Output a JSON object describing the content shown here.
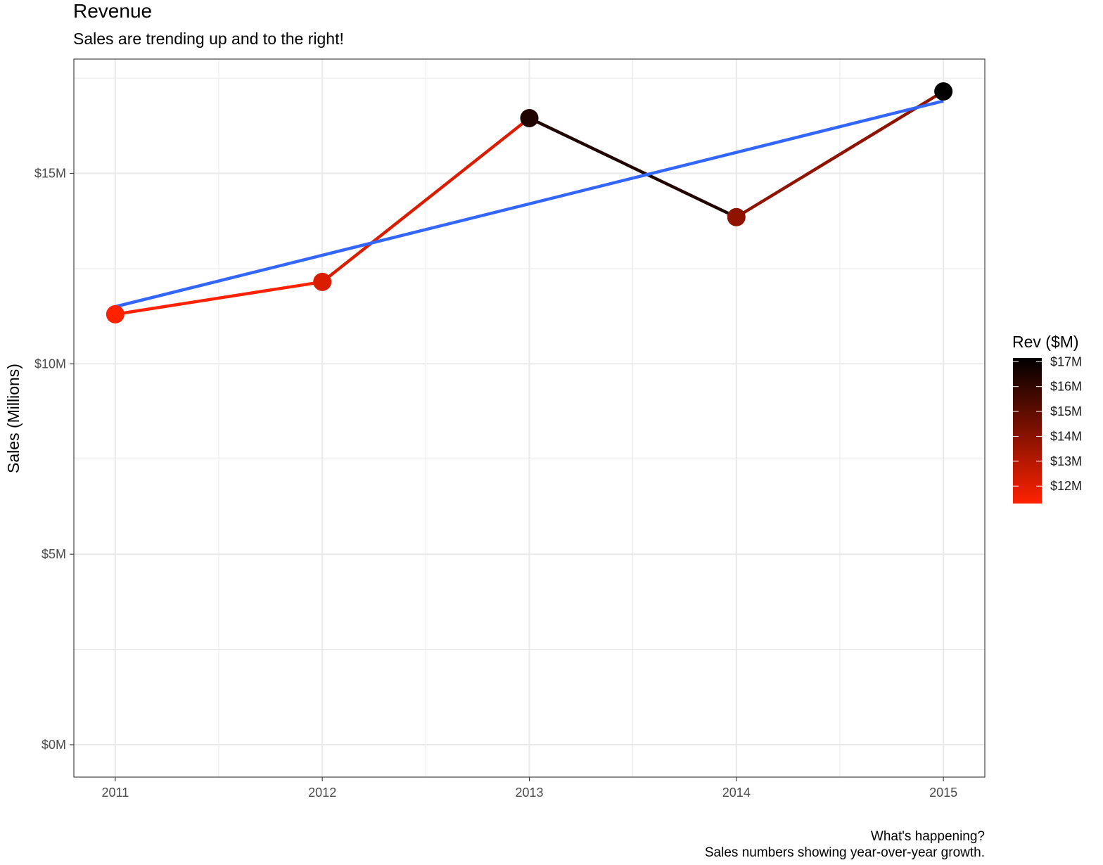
{
  "chart_data": {
    "type": "line",
    "title": "Revenue",
    "subtitle": "Sales are trending up and to the right!",
    "caption": [
      "What's happening?",
      "Sales numbers showing year-over-year growth."
    ],
    "xlabel": "",
    "ylabel": "Sales (Millions)",
    "x": [
      2011,
      2012,
      2013,
      2014,
      2015
    ],
    "values": [
      11.3,
      12.15,
      16.45,
      13.85,
      17.15
    ],
    "trend": {
      "x": [
        2011,
        2015
      ],
      "y": [
        11.5,
        16.9
      ],
      "color": "#3366ff"
    },
    "xlim": [
      2010.8,
      2015.2
    ],
    "ylim": [
      -0.85,
      18.0
    ],
    "x_ticks": [
      2011,
      2012,
      2013,
      2014,
      2015
    ],
    "x_tick_labels": [
      "2011",
      "2012",
      "2013",
      "2014",
      "2015"
    ],
    "y_ticks": [
      0,
      5,
      10,
      15
    ],
    "y_tick_labels": [
      "$0M",
      "$5M",
      "$10M",
      "$15M"
    ],
    "grid": true,
    "legend": {
      "title": "Rev ($M)",
      "position": "right",
      "type": "colorbar",
      "range": [
        11.3,
        17.15
      ],
      "ticks": [
        12,
        13,
        14,
        15,
        16,
        17
      ],
      "tick_labels": [
        "$12M",
        "$13M",
        "$14M",
        "$15M",
        "$16M",
        "$17M"
      ],
      "low_color": "#ff2200",
      "high_color": "#000000"
    }
  }
}
